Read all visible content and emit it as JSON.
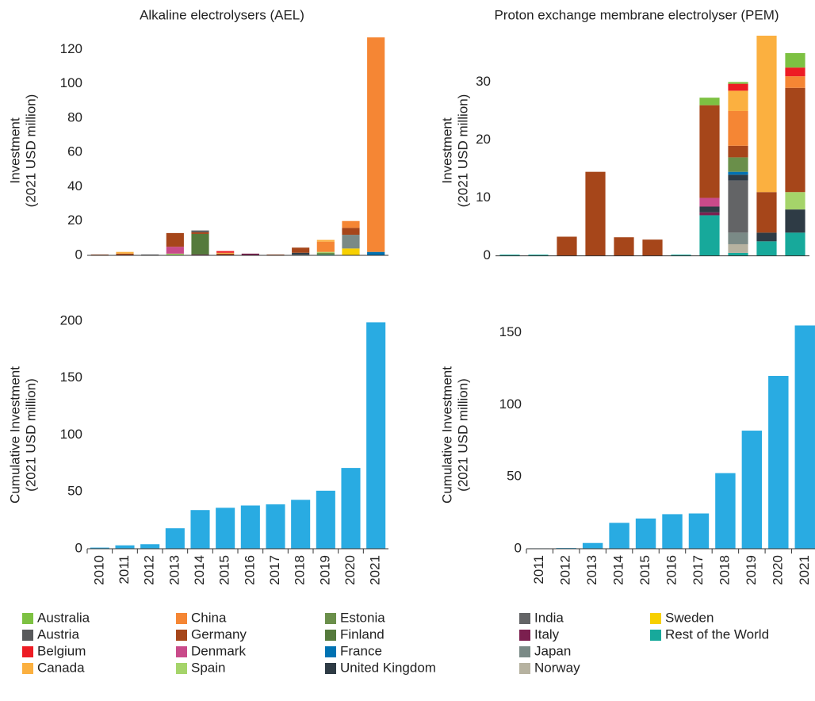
{
  "chart_data": [
    {
      "type": "stacked_bar",
      "title": "Alkaline electrolysers (AEL)",
      "ylabel": [
        "Investment",
        "(2021 USD million)"
      ],
      "categories": [
        "2010",
        "2011",
        "2012",
        "2013",
        "2014",
        "2015",
        "2016",
        "2017",
        "2018",
        "2019",
        "2020",
        "2021"
      ],
      "ylim": [
        -6,
        128
      ],
      "yticks": [
        0,
        20,
        40,
        60,
        80,
        100,
        120
      ],
      "series": [
        {
          "name": "Australia",
          "color": "#7dc142",
          "values": [
            0,
            0,
            0,
            0,
            0,
            0,
            0,
            0,
            0,
            0,
            0,
            0
          ]
        },
        {
          "name": "Austria",
          "color": "#58595b",
          "values": [
            0,
            0,
            0.5,
            0,
            1,
            0,
            0,
            0,
            0,
            0,
            0,
            0
          ]
        },
        {
          "name": "Belgium",
          "color": "#ed1c24",
          "values": [
            0,
            0,
            0,
            0,
            0,
            1,
            0,
            0,
            0,
            0,
            0,
            0
          ]
        },
        {
          "name": "Canada",
          "color": "#fbb040",
          "values": [
            0,
            1,
            0,
            0,
            0,
            0.5,
            0,
            0,
            0,
            1,
            0,
            0
          ]
        },
        {
          "name": "China",
          "color": "#f58634",
          "values": [
            0,
            0,
            0,
            0,
            0,
            0,
            0,
            0,
            0,
            6,
            4,
            125
          ]
        },
        {
          "name": "Germany",
          "color": "#a6461a",
          "values": [
            0.5,
            1,
            0,
            8,
            1,
            1,
            0,
            0.5,
            3,
            0,
            4,
            0
          ]
        },
        {
          "name": "Denmark",
          "color": "#c94a8a",
          "values": [
            0,
            0,
            0,
            4,
            0,
            0,
            0,
            0,
            0,
            0,
            0,
            0
          ]
        },
        {
          "name": "Spain",
          "color": "#a5d46a",
          "values": [
            0,
            0,
            0,
            1,
            0,
            0,
            0,
            0,
            0,
            0.5,
            0,
            0
          ]
        },
        {
          "name": "Estonia",
          "color": "#6a8f4a",
          "values": [
            0,
            0,
            0,
            0,
            0,
            0,
            0,
            0,
            0,
            1,
            0,
            0
          ]
        },
        {
          "name": "Finland",
          "color": "#557a3c",
          "values": [
            0,
            0,
            0,
            0,
            12,
            0,
            0,
            0,
            0,
            0,
            0,
            0
          ]
        },
        {
          "name": "France",
          "color": "#0072b2",
          "values": [
            0,
            0,
            0,
            0,
            0,
            0,
            0,
            0,
            0,
            0,
            0,
            2
          ]
        },
        {
          "name": "United Kingdom",
          "color": "#2e3b45",
          "values": [
            0,
            0,
            0,
            0,
            0,
            0,
            0,
            0,
            1,
            0,
            0,
            0
          ]
        },
        {
          "name": "India",
          "color": "#636466",
          "values": [
            0,
            0,
            0,
            0,
            0,
            0,
            0,
            0,
            0,
            0,
            0,
            0
          ]
        },
        {
          "name": "Italy",
          "color": "#7b1f4f",
          "values": [
            0,
            0,
            0,
            0,
            0.5,
            0,
            1,
            0,
            0,
            0,
            0,
            0
          ]
        },
        {
          "name": "Japan",
          "color": "#7a8a86",
          "values": [
            0,
            0,
            0,
            0,
            0,
            0,
            0,
            0,
            0.5,
            0,
            8,
            0
          ]
        },
        {
          "name": "Norway",
          "color": "#b6b2a0",
          "values": [
            0,
            0,
            0,
            0,
            0,
            0,
            0,
            0,
            0,
            0,
            0,
            0
          ]
        },
        {
          "name": "Sweden",
          "color": "#f7d000",
          "values": [
            0,
            0,
            0,
            0,
            0,
            0,
            0,
            0,
            0,
            0,
            4,
            0
          ]
        },
        {
          "name": "Rest of the World",
          "color": "#17a99b",
          "values": [
            0,
            0,
            0,
            0,
            0,
            0,
            0,
            0,
            0,
            0.5,
            0,
            0
          ]
        }
      ]
    },
    {
      "type": "stacked_bar",
      "title": "Proton exchange membrane electrolyser (PEM)",
      "ylabel": [
        "Investment",
        "(2021 USD million)"
      ],
      "categories": [
        "2011",
        "2012",
        "2013",
        "2014",
        "2015",
        "2016",
        "2017",
        "2018",
        "2019",
        "2020",
        "2021"
      ],
      "ylim": [
        -1.7,
        38
      ],
      "yticks": [
        0,
        10,
        20,
        30
      ],
      "series": [
        {
          "name": "Australia",
          "color": "#7dc142",
          "values": [
            0,
            0,
            0,
            0,
            0,
            0,
            0,
            1.3,
            0.3,
            0,
            2.5
          ]
        },
        {
          "name": "Austria",
          "color": "#58595b",
          "values": [
            0,
            0,
            0,
            0,
            0,
            0,
            0,
            0,
            0,
            0,
            0
          ]
        },
        {
          "name": "Belgium",
          "color": "#ed1c24",
          "values": [
            0,
            0,
            0,
            0,
            0,
            0,
            0,
            0,
            1.2,
            0,
            1.5
          ]
        },
        {
          "name": "Canada",
          "color": "#fbb040",
          "values": [
            0,
            0,
            0,
            0,
            0,
            0,
            0,
            0,
            3.5,
            27.5,
            0
          ]
        },
        {
          "name": "China",
          "color": "#f58634",
          "values": [
            0,
            0,
            0,
            0,
            0,
            0,
            0,
            0,
            6,
            0,
            2
          ]
        },
        {
          "name": "Germany",
          "color": "#a6461a",
          "values": [
            0,
            0,
            3.3,
            14.5,
            3.2,
            2.8,
            0,
            16,
            2,
            7,
            18
          ]
        },
        {
          "name": "Denmark",
          "color": "#c94a8a",
          "values": [
            0,
            0,
            0,
            0,
            0,
            0,
            0,
            1.5,
            0,
            0,
            0
          ]
        },
        {
          "name": "Spain",
          "color": "#a5d46a",
          "values": [
            0,
            0,
            0,
            0,
            0,
            0,
            0,
            0,
            0,
            0,
            3
          ]
        },
        {
          "name": "Estonia",
          "color": "#6a8f4a",
          "values": [
            0,
            0,
            0,
            0,
            0,
            0,
            0,
            0,
            2.5,
            0,
            0
          ]
        },
        {
          "name": "Finland",
          "color": "#557a3c",
          "values": [
            0,
            0,
            0,
            0,
            0,
            0,
            0,
            0,
            0,
            0,
            0
          ]
        },
        {
          "name": "France",
          "color": "#0072b2",
          "values": [
            0,
            0,
            0,
            0,
            0,
            0,
            0,
            0,
            0.5,
            0,
            0
          ]
        },
        {
          "name": "United Kingdom",
          "color": "#2e3b45",
          "values": [
            0,
            0,
            0,
            0,
            0,
            0,
            0,
            1,
            1,
            1.5,
            4
          ]
        },
        {
          "name": "India",
          "color": "#636466",
          "values": [
            0,
            0,
            0,
            0,
            0,
            0,
            0,
            0,
            9,
            0,
            0
          ]
        },
        {
          "name": "Italy",
          "color": "#7b1f4f",
          "values": [
            0,
            0,
            0,
            0,
            0,
            0,
            0,
            0.5,
            0,
            0,
            0
          ]
        },
        {
          "name": "Japan",
          "color": "#7a8a86",
          "values": [
            0,
            0,
            0,
            0,
            0,
            0,
            0,
            0,
            2,
            0,
            0
          ]
        },
        {
          "name": "Norway",
          "color": "#b6b2a0",
          "values": [
            0,
            0,
            0,
            0,
            0,
            0,
            0,
            0,
            1.5,
            0,
            0
          ]
        },
        {
          "name": "Sweden",
          "color": "#f7d000",
          "values": [
            0,
            0,
            0,
            0,
            0,
            0,
            0,
            0,
            0,
            0,
            0
          ]
        },
        {
          "name": "Rest of the World",
          "color": "#17a99b",
          "values": [
            0.2,
            0.2,
            0,
            0,
            0,
            0,
            0.2,
            7,
            0.5,
            2.5,
            4
          ]
        }
      ]
    },
    {
      "type": "bar",
      "ylabel": [
        "Cumulative Investment",
        "(2021 USD million)"
      ],
      "color": "#29abe2",
      "categories": [
        "2010",
        "2011",
        "2012",
        "2013",
        "2014",
        "2015",
        "2016",
        "2017",
        "2018",
        "2019",
        "2020",
        "2021"
      ],
      "values": [
        1,
        3,
        4,
        18,
        34,
        36,
        38,
        39,
        43,
        51,
        71,
        199
      ],
      "ylim": [
        0,
        200
      ],
      "yticks": [
        0,
        50,
        100,
        150,
        200
      ]
    },
    {
      "type": "bar",
      "ylabel": [
        "Cumulative Investment",
        "(2021 USD million)"
      ],
      "color": "#29abe2",
      "categories": [
        "2011",
        "2012",
        "2013",
        "2014",
        "2015",
        "2016",
        "2017",
        "2018",
        "2019",
        "2020",
        "2021"
      ],
      "values": [
        0.3,
        0.5,
        4,
        18,
        21,
        24,
        24.5,
        52.5,
        82,
        120,
        155
      ],
      "ylim": [
        0,
        158
      ],
      "yticks": [
        0,
        50,
        100,
        150
      ]
    }
  ]
}
